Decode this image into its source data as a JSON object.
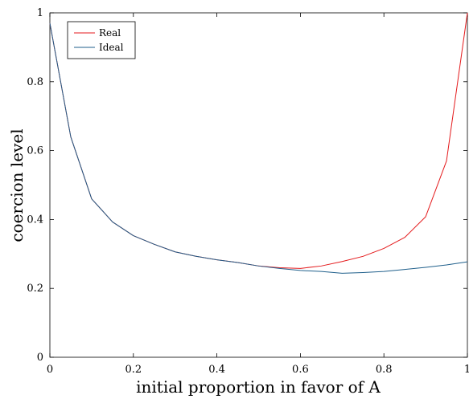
{
  "chart_data": {
    "type": "line",
    "title": "",
    "xlabel": "initial proportion in favor of A",
    "ylabel": "coercion level",
    "xlim": [
      0,
      1
    ],
    "ylim": [
      0,
      1
    ],
    "x_ticks": [
      "0",
      "0.2",
      "0.4",
      "0.6",
      "0.8",
      "1"
    ],
    "y_ticks": [
      "0",
      "0.2",
      "0.4",
      "0.6",
      "0.8",
      "1"
    ],
    "grid": false,
    "legend_position": "top-left",
    "series": [
      {
        "name": "Real",
        "color": "#e41a1c",
        "x": [
          0,
          0.05,
          0.1,
          0.15,
          0.2,
          0.25,
          0.3,
          0.35,
          0.4,
          0.45,
          0.5,
          0.55,
          0.6,
          0.65,
          0.7,
          0.75,
          0.8,
          0.85,
          0.9,
          0.95,
          1.0
        ],
        "values": [
          0.97,
          0.64,
          0.46,
          0.393,
          0.353,
          0.328,
          0.306,
          0.293,
          0.283,
          0.275,
          0.265,
          0.26,
          0.258,
          0.265,
          0.278,
          0.293,
          0.316,
          0.348,
          0.408,
          0.57,
          1.0
        ]
      },
      {
        "name": "Ideal",
        "color": "#1f5f8b",
        "x": [
          0,
          0.05,
          0.1,
          0.15,
          0.2,
          0.25,
          0.3,
          0.35,
          0.4,
          0.45,
          0.5,
          0.55,
          0.6,
          0.65,
          0.7,
          0.75,
          0.8,
          0.85,
          0.9,
          0.95,
          1.0
        ],
        "values": [
          0.97,
          0.64,
          0.46,
          0.393,
          0.353,
          0.328,
          0.306,
          0.293,
          0.283,
          0.275,
          0.265,
          0.258,
          0.252,
          0.249,
          0.244,
          0.246,
          0.249,
          0.255,
          0.261,
          0.268,
          0.277
        ]
      }
    ]
  }
}
